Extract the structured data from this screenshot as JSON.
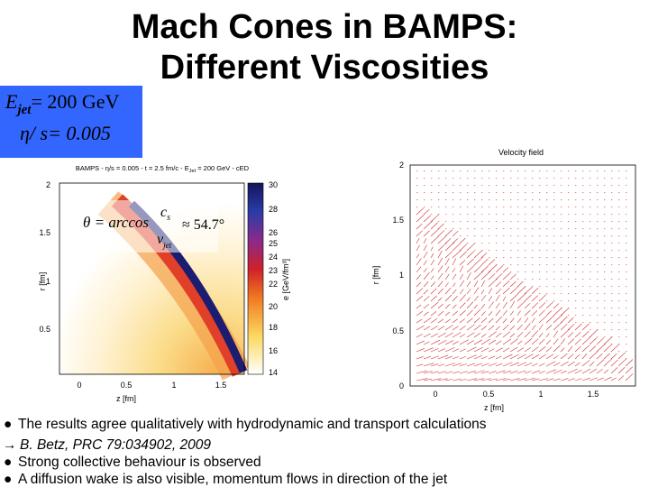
{
  "title": [
    "Mach Cones in BAMPS:",
    "Different Viscosities"
  ],
  "parameter_box": {
    "energy_symbol": "E",
    "energy_subscript": "jet",
    "energy_value": "= 200 GeV",
    "viscosity": "η/ s= 0.005"
  },
  "left_plot": {
    "title_prefix": "BAMPS - η/s = 0.005 - t = 2.5 fm/c - E",
    "title_subscript": "Jet",
    "title_suffix": " = 200 GeV - cED",
    "x_label": "z [fm]",
    "y_label": "r [fm]",
    "x_ticks": [
      "0",
      "0.5",
      "1",
      "1.5"
    ],
    "y_ticks": [
      "2",
      "1.5",
      "1",
      "0.5"
    ],
    "colorbar_label": "e [GeV/fm³]",
    "colorbar_ticks": [
      "30",
      "28",
      "26",
      "25",
      "24",
      "23",
      "22",
      "20",
      "18",
      "16",
      "14"
    ],
    "formula": {
      "lhs": "θ = arccos",
      "numerator": "c",
      "numerator_sub": "s",
      "denominator": "v",
      "denominator_sub": "jet",
      "rhs": "≈ 54.7°"
    }
  },
  "right_plot": {
    "title": "Velocity field",
    "x_label": "z [fm]",
    "y_label": "r [fm]",
    "x_ticks": [
      "0",
      "0.5",
      "1",
      "1.5"
    ],
    "y_ticks": [
      "2",
      "1.5",
      "1",
      "0.5",
      "0"
    ]
  },
  "bullets": [
    {
      "marker": "●",
      "text": "The results agree qualitatively with hydrodynamic and transport calculations"
    },
    {
      "marker": "→",
      "text": "B. Betz, PRC 79:034902, 2009"
    },
    {
      "marker": "●",
      "text": "Strong collective behaviour is observed"
    },
    {
      "marker": "●",
      "text": "A diffusion wake is also visible, momentum flows in direction of the jet"
    }
  ]
}
